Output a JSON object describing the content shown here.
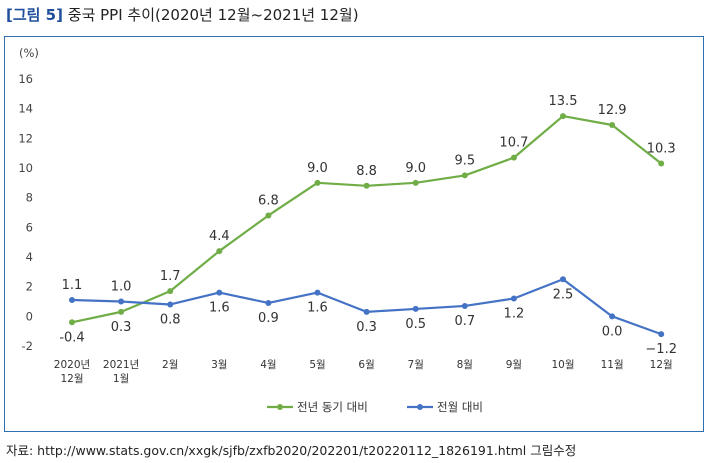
{
  "figure": {
    "tag": "[그림 5]",
    "title": "중국 PPI 추이(2020년 12월~2021년 12월)",
    "source": "자료: http://www.stats.gov.cn/xxgk/sjfb/zxfb2020/202201/t20220112_1826191.html 그림수정"
  },
  "chart_data": {
    "type": "line",
    "ylabel": "(%)",
    "ylim": [
      -2,
      16
    ],
    "yticks": [
      -2,
      0,
      2,
      4,
      6,
      8,
      10,
      12,
      14,
      16
    ],
    "grid": false,
    "legend_position": "bottom",
    "categories": [
      [
        "2020년",
        "12월"
      ],
      [
        "2021년",
        "1월"
      ],
      [
        "2월"
      ],
      [
        "3월"
      ],
      [
        "4월"
      ],
      [
        "5월"
      ],
      [
        "6월"
      ],
      [
        "7월"
      ],
      [
        "8월"
      ],
      [
        "9월"
      ],
      [
        "10월"
      ],
      [
        "11월"
      ],
      [
        "12월"
      ]
    ],
    "series": [
      {
        "name": "전년 동기 대비",
        "color": "#70ad47",
        "values": [
          -0.4,
          0.3,
          1.7,
          4.4,
          6.8,
          9.0,
          8.8,
          9.0,
          9.5,
          10.7,
          13.5,
          12.9,
          10.3
        ],
        "labels": [
          "-0.4",
          "0.3",
          "1.7",
          "4.4",
          "6.8",
          "9.0",
          "8.8",
          "9.0",
          "9.5",
          "10.7",
          "13.5",
          "12.9",
          "10.3"
        ],
        "label_pos": [
          "below",
          "below",
          "above",
          "above",
          "above",
          "above",
          "above",
          "above",
          "above",
          "above",
          "above",
          "above",
          "above"
        ]
      },
      {
        "name": "전월 대비",
        "color": "#4472c4",
        "values": [
          1.1,
          1.0,
          0.8,
          1.6,
          0.9,
          1.6,
          0.3,
          0.5,
          0.7,
          1.2,
          2.5,
          0.0,
          -1.2
        ],
        "labels": [
          "1.1",
          "1.0",
          "0.8",
          "1.6",
          "0.9",
          "1.6",
          "0.3",
          "0.5",
          "0.7",
          "1.2",
          "2.5",
          "0.0",
          "−1.2"
        ],
        "label_pos": [
          "above",
          "above",
          "below",
          "below",
          "below",
          "below",
          "below",
          "below",
          "below",
          "below",
          "below",
          "below",
          "below"
        ]
      }
    ]
  }
}
